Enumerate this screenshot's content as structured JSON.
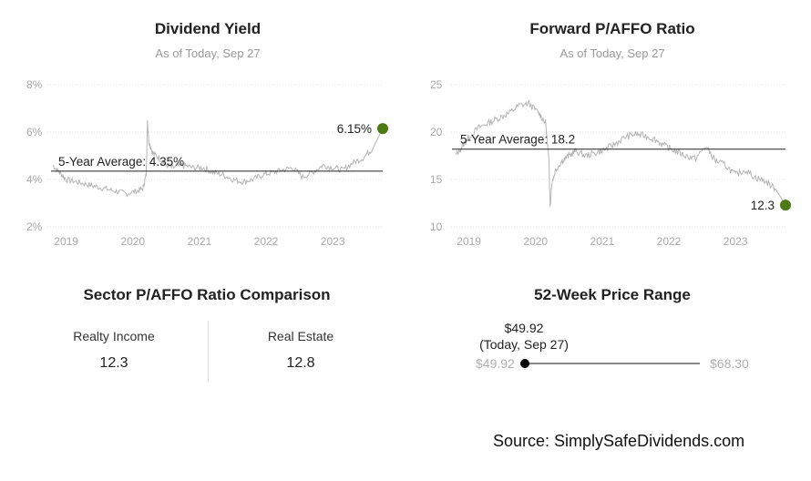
{
  "charts": {
    "yield": {
      "title": "Dividend Yield",
      "subtitle": "As of Today, Sep 27",
      "average_label": "5-Year Average: 4.35%",
      "current_label": "6.15%"
    },
    "pafo": {
      "title": "Forward P/AFFO Ratio",
      "subtitle": "As of Today, Sep 27",
      "average_label": "5-Year Average: 18.2",
      "current_label": "12.3"
    }
  },
  "comparison": {
    "title": "Sector P/AFFO Ratio Comparison",
    "items": [
      {
        "name": "Realty Income",
        "value": "12.3"
      },
      {
        "name": "Real Estate",
        "value": "12.8"
      }
    ]
  },
  "price_range": {
    "title": "52-Week Price Range",
    "current_value": "$49.92",
    "current_note": "(Today, Sep 27)",
    "low_label": "$49.92",
    "high_label": "$68.30",
    "low": 49.92,
    "high": 68.3,
    "current": 49.92
  },
  "source": "Source: SimplySafeDividends.com",
  "colors": {
    "line": "#b5b5b5",
    "marker": "#4d7a14",
    "average_line": "#222222",
    "grid": "#e3e3e3"
  },
  "chart_data": [
    {
      "type": "line",
      "title": "Dividend Yield",
      "subtitle": "As of Today, Sep 27",
      "y_unit": "%",
      "ylim": [
        2,
        8
      ],
      "y_ticks": [
        2,
        4,
        6,
        8
      ],
      "y_tick_labels": [
        "2%",
        "4%",
        "6%",
        "8%"
      ],
      "x_tick_labels": [
        "2019",
        "2020",
        "2021",
        "2022",
        "2023"
      ],
      "x_ticks": [
        2019,
        2020,
        2021,
        2022,
        2023
      ],
      "xlim": [
        2018.8,
        2023.75
      ],
      "average": 4.35,
      "average_label": "5-Year Average: 4.35%",
      "current": 6.15,
      "current_label": "6.15%",
      "series": [
        {
          "x": [
            2018.8,
            2018.9,
            2019.0,
            2019.15,
            2019.3,
            2019.45,
            2019.6,
            2019.75,
            2019.9,
            2020.05,
            2020.15,
            2020.2,
            2020.22,
            2020.24,
            2020.3,
            2020.4,
            2020.5,
            2020.6,
            2020.75,
            2020.9,
            2021.05,
            2021.2,
            2021.35,
            2021.5,
            2021.65,
            2021.8,
            2021.95,
            2022.1,
            2022.25,
            2022.4,
            2022.55,
            2022.7,
            2022.85,
            2023.0,
            2023.15,
            2023.3,
            2023.45,
            2023.6,
            2023.75
          ],
          "y": [
            4.6,
            4.3,
            4.0,
            3.9,
            3.8,
            3.7,
            3.6,
            3.5,
            3.4,
            3.5,
            3.6,
            4.2,
            6.5,
            5.6,
            5.1,
            4.9,
            4.6,
            4.5,
            4.6,
            4.5,
            4.5,
            4.3,
            4.2,
            4.0,
            3.9,
            4.0,
            4.2,
            4.3,
            4.4,
            4.5,
            4.1,
            4.3,
            4.6,
            4.5,
            4.4,
            4.7,
            4.9,
            5.3,
            6.15
          ]
        }
      ]
    },
    {
      "type": "line",
      "title": "Forward P/AFFO Ratio",
      "subtitle": "As of Today, Sep 27",
      "ylim": [
        10,
        25
      ],
      "y_ticks": [
        10,
        15,
        20,
        25
      ],
      "y_tick_labels": [
        "10",
        "15",
        "20",
        "25"
      ],
      "x_tick_labels": [
        "2019",
        "2020",
        "2021",
        "2022",
        "2023"
      ],
      "x_ticks": [
        2019,
        2020,
        2021,
        2022,
        2023
      ],
      "xlim": [
        2018.8,
        2023.75
      ],
      "average": 18.2,
      "average_label": "5-Year Average: 18.2",
      "current": 12.3,
      "current_label": "12.3",
      "series": [
        {
          "x": [
            2018.8,
            2018.9,
            2019.0,
            2019.15,
            2019.3,
            2019.45,
            2019.6,
            2019.75,
            2019.9,
            2020.05,
            2020.15,
            2020.2,
            2020.22,
            2020.24,
            2020.3,
            2020.4,
            2020.5,
            2020.6,
            2020.75,
            2020.9,
            2021.05,
            2021.2,
            2021.35,
            2021.5,
            2021.65,
            2021.8,
            2021.95,
            2022.1,
            2022.25,
            2022.4,
            2022.55,
            2022.7,
            2022.85,
            2023.0,
            2023.15,
            2023.3,
            2023.45,
            2023.6,
            2023.75
          ],
          "y": [
            17.5,
            18.5,
            19.5,
            20.5,
            21.0,
            21.5,
            22.0,
            22.8,
            23.0,
            22.0,
            21.0,
            17.0,
            12.0,
            14.5,
            16.0,
            17.0,
            17.5,
            18.0,
            17.5,
            17.8,
            18.2,
            18.8,
            19.5,
            19.8,
            19.6,
            19.2,
            18.5,
            18.0,
            17.5,
            17.2,
            18.5,
            17.0,
            16.5,
            15.5,
            16.0,
            15.2,
            14.8,
            14.0,
            12.3
          ]
        }
      ]
    }
  ]
}
